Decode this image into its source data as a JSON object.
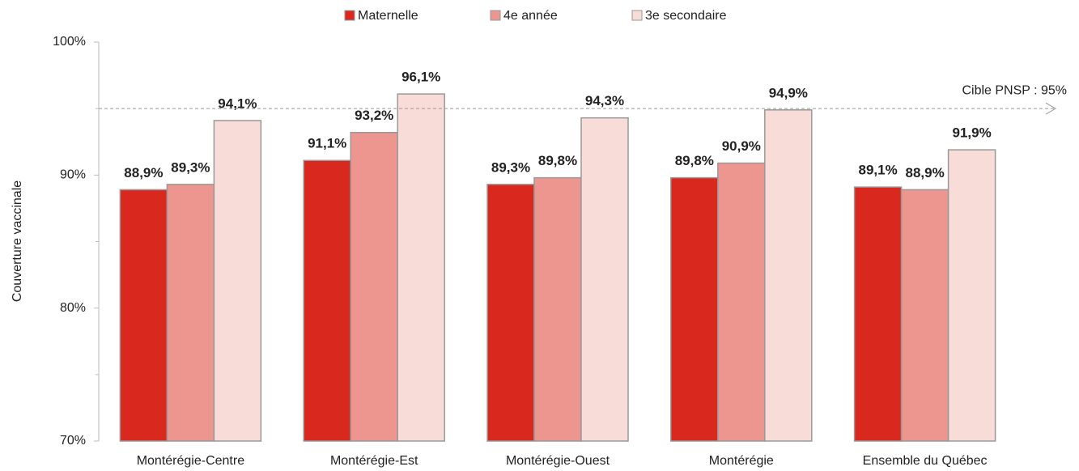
{
  "chart_data": {
    "type": "bar",
    "ylabel": "Couverture vaccinale",
    "categories": [
      "Montérégie-Centre",
      "Montérégie-Est",
      "Montérégie-Ouest",
      "Montérégie",
      "Ensemble du Québec"
    ],
    "series": [
      {
        "name": "Maternelle",
        "color": "#d9281e",
        "values": [
          88.9,
          91.1,
          89.3,
          89.8,
          89.1
        ],
        "value_labels": [
          "88,9%",
          "91,1%",
          "89,3%",
          "89,8%",
          "89,1%"
        ]
      },
      {
        "name": "4e année",
        "color": "#ec968f",
        "values": [
          89.3,
          93.2,
          89.8,
          90.9,
          88.9
        ],
        "value_labels": [
          "89,3%",
          "93,2%",
          "89,8%",
          "90,9%",
          "88,9%"
        ]
      },
      {
        "name": "3e secondaire",
        "color": "#f8dcd7",
        "values": [
          94.1,
          96.1,
          94.3,
          94.9,
          91.9
        ],
        "value_labels": [
          "94,1%",
          "96,1%",
          "94,3%",
          "94,9%",
          "91,9%"
        ]
      }
    ],
    "ylim": [
      70,
      100
    ],
    "yticks": [
      {
        "value": 70,
        "label": "70%"
      },
      {
        "value": 80,
        "label": "80%"
      },
      {
        "value": 90,
        "label": "90%"
      },
      {
        "value": 100,
        "label": "100%"
      }
    ],
    "minor_yticks": [
      75,
      85,
      95
    ],
    "target": {
      "value": 95,
      "label": "Cible PNSP : 95%"
    },
    "legend": "top"
  }
}
